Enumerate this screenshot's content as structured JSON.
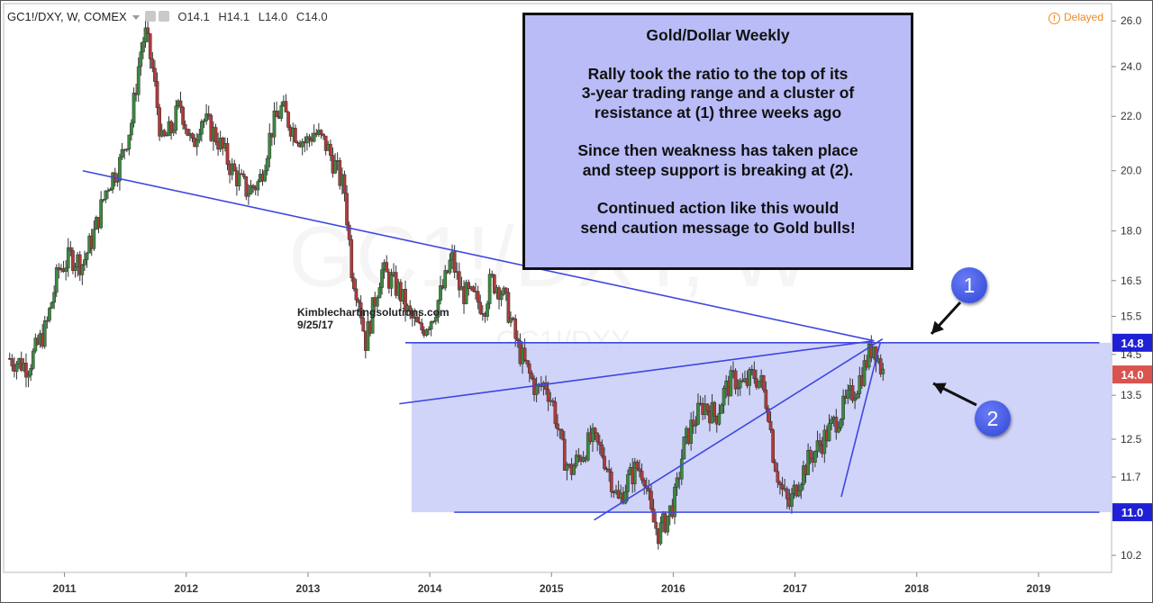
{
  "header": {
    "symbol": "GC1!/DXY, W, COMEX",
    "open_label": "O",
    "open": "14.1",
    "high_label": "H",
    "high": "14.1",
    "low_label": "L",
    "low": "14.0",
    "close_label": "C",
    "close": "14.0",
    "delayed": "Delayed"
  },
  "annotation": {
    "title": "Gold/Dollar Weekly",
    "line1": "Rally took the ratio to the top of its",
    "line2": "3-year trading range and a cluster of",
    "line3": "resistance at (1) three weeks ago",
    "line4": "Since then weakness has taken place",
    "line5": "and steep support is breaking at (2).",
    "line6": "Continued action like this would",
    "line7": "send caution message to Gold bulls!"
  },
  "credit": {
    "site": "Kimblechartingsolutions.com",
    "date": "9/25/17"
  },
  "markers": {
    "m1": "1",
    "m2": "2"
  },
  "watermark": {
    "big": "GC1!/DXY, W",
    "small": "GC1!/DXY"
  },
  "colors": {
    "up": "#3a8a3f",
    "down": "#b23a3a",
    "trend": "#3d47e0",
    "range_fill": "#c9ccf8",
    "level_badge": "#1f20d6",
    "price_badge": "#d9534f"
  },
  "chart_data": {
    "type": "candlestick",
    "x_ticks": [
      "2011",
      "2012",
      "2013",
      "2014",
      "2015",
      "2016",
      "2017",
      "2018",
      "2019"
    ],
    "y_ticks": [
      "26.0",
      "24.0",
      "22.0",
      "20.0",
      "18.0",
      "16.5",
      "15.5",
      "14.5",
      "13.5",
      "12.5",
      "11.7",
      "10.2"
    ],
    "y_scale": "log",
    "ylim": [
      9.9,
      26.8
    ],
    "level_labels": {
      "top": "14.8",
      "bottom": "11.0",
      "last": "14.0"
    },
    "range_box": {
      "x_start": 2013.85,
      "x_end": 2019.5,
      "y_low": 11.0,
      "y_high": 14.8
    },
    "trendlines": [
      {
        "from": [
          2011.15,
          20.0
        ],
        "to": [
          2017.65,
          14.85
        ]
      },
      {
        "from": [
          2013.75,
          13.3
        ],
        "to": [
          2017.65,
          14.85
        ]
      },
      {
        "from": [
          2015.35,
          10.85
        ],
        "to": [
          2017.72,
          14.9
        ]
      },
      {
        "from": [
          2017.38,
          11.3
        ],
        "to": [
          2017.7,
          14.8
        ]
      },
      {
        "from": [
          2013.8,
          14.8
        ],
        "to": [
          2019.5,
          14.8
        ]
      },
      {
        "from": [
          2014.2,
          11.0
        ],
        "to": [
          2019.5,
          11.0
        ]
      }
    ],
    "path": [
      [
        2010.55,
        14.4
      ],
      [
        2010.7,
        14.2
      ],
      [
        2010.85,
        15.2
      ],
      [
        2010.95,
        16.8
      ],
      [
        2011.05,
        17.2
      ],
      [
        2011.15,
        17.0
      ],
      [
        2011.25,
        18.0
      ],
      [
        2011.35,
        19.5
      ],
      [
        2011.45,
        20.2
      ],
      [
        2011.55,
        21.8
      ],
      [
        2011.62,
        24.5
      ],
      [
        2011.66,
        25.5
      ],
      [
        2011.72,
        24.0
      ],
      [
        2011.8,
        21.0
      ],
      [
        2011.88,
        21.5
      ],
      [
        2011.95,
        22.5
      ],
      [
        2012.05,
        20.8
      ],
      [
        2012.12,
        22.0
      ],
      [
        2012.25,
        21.2
      ],
      [
        2012.38,
        20.0
      ],
      [
        2012.5,
        19.3
      ],
      [
        2012.6,
        19.6
      ],
      [
        2012.7,
        21.5
      ],
      [
        2012.78,
        22.3
      ],
      [
        2012.88,
        21.5
      ],
      [
        2012.98,
        21.0
      ],
      [
        2013.05,
        21.4
      ],
      [
        2013.15,
        20.9
      ],
      [
        2013.22,
        20.2
      ],
      [
        2013.3,
        19.3
      ],
      [
        2013.36,
        16.8
      ],
      [
        2013.42,
        16.0
      ],
      [
        2013.47,
        14.8
      ],
      [
        2013.52,
        15.5
      ],
      [
        2013.6,
        16.8
      ],
      [
        2013.68,
        16.5
      ],
      [
        2013.75,
        16.2
      ],
      [
        2013.82,
        15.6
      ],
      [
        2013.92,
        15.1
      ],
      [
        2014.02,
        15.5
      ],
      [
        2014.12,
        16.4
      ],
      [
        2014.18,
        17.2
      ],
      [
        2014.25,
        16.2
      ],
      [
        2014.35,
        16.0
      ],
      [
        2014.45,
        15.8
      ],
      [
        2014.5,
        16.5
      ],
      [
        2014.58,
        16.3
      ],
      [
        2014.65,
        15.6
      ],
      [
        2014.72,
        14.7
      ],
      [
        2014.8,
        14.1
      ],
      [
        2014.88,
        13.6
      ],
      [
        2014.95,
        13.8
      ],
      [
        2015.02,
        13.2
      ],
      [
        2015.08,
        12.3
      ],
      [
        2015.15,
        11.8
      ],
      [
        2015.25,
        12.2
      ],
      [
        2015.33,
        12.5
      ],
      [
        2015.42,
        12.2
      ],
      [
        2015.5,
        11.6
      ],
      [
        2015.55,
        11.2
      ],
      [
        2015.62,
        11.6
      ],
      [
        2015.7,
        11.9
      ],
      [
        2015.76,
        11.8
      ],
      [
        2015.82,
        10.9
      ],
      [
        2015.88,
        10.6
      ],
      [
        2015.95,
        10.9
      ],
      [
        2016.02,
        11.3
      ],
      [
        2016.08,
        12.3
      ],
      [
        2016.15,
        12.8
      ],
      [
        2016.25,
        13.3
      ],
      [
        2016.35,
        13.0
      ],
      [
        2016.42,
        13.6
      ],
      [
        2016.5,
        13.9
      ],
      [
        2016.58,
        13.7
      ],
      [
        2016.66,
        14.0
      ],
      [
        2016.72,
        13.8
      ],
      [
        2016.78,
        13.2
      ],
      [
        2016.82,
        12.2
      ],
      [
        2016.88,
        11.5
      ],
      [
        2016.95,
        11.1
      ],
      [
        2017.02,
        11.6
      ],
      [
        2017.1,
        12.0
      ],
      [
        2017.18,
        12.3
      ],
      [
        2017.26,
        12.6
      ],
      [
        2017.33,
        12.9
      ],
      [
        2017.42,
        13.3
      ],
      [
        2017.5,
        13.7
      ],
      [
        2017.56,
        14.1
      ],
      [
        2017.62,
        14.6
      ],
      [
        2017.65,
        14.8
      ],
      [
        2017.7,
        14.2
      ],
      [
        2017.73,
        14.0
      ]
    ]
  }
}
